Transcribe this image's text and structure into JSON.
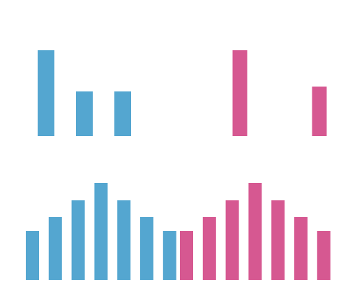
{
  "chart_data": [
    {
      "type": "bar",
      "categories": [
        null,
        null,
        null
      ],
      "values": [
        123,
        64,
        64
      ],
      "color": "#54a6d0"
    },
    {
      "type": "bar",
      "categories": [
        null,
        null,
        null,
        null,
        null
      ],
      "values": [
        123,
        0,
        0,
        0,
        71
      ],
      "color": "#d65891"
    },
    {
      "type": "bar",
      "categories": [
        null,
        null,
        null,
        null,
        null,
        null,
        null
      ],
      "values": [
        70,
        90,
        114,
        139,
        114,
        90,
        70
      ],
      "color": "#54a6d0"
    },
    {
      "type": "bar",
      "categories": [
        null,
        null,
        null,
        null,
        null,
        null,
        null
      ],
      "values": [
        70,
        90,
        114,
        139,
        114,
        90,
        70
      ],
      "color": "#d65891"
    }
  ]
}
